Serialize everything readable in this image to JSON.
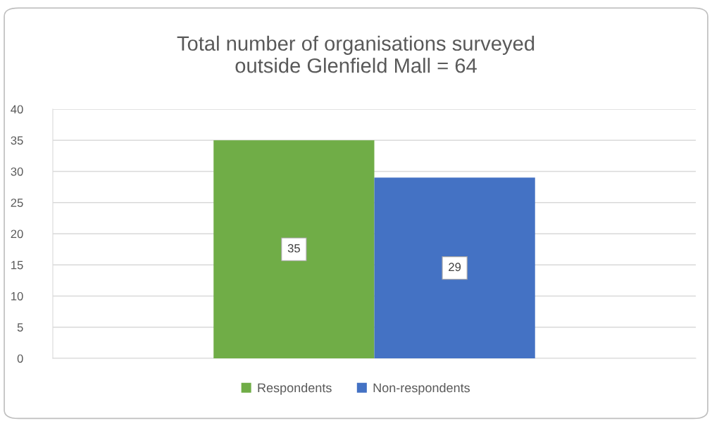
{
  "chart_data": {
    "type": "bar",
    "title": "Total number of organisations surveyed\noutside Glenfield Mall = 64",
    "categories": [
      null
    ],
    "series": [
      {
        "name": "Respondents",
        "color": "#70ad47",
        "values": [
          35
        ]
      },
      {
        "name": "Non-respondents",
        "color": "#4472c4",
        "values": [
          29
        ]
      }
    ],
    "ylim": [
      0,
      40
    ],
    "yticks": [
      0,
      5,
      10,
      15,
      20,
      25,
      30,
      35,
      40
    ],
    "grid": "y",
    "legend": "bottom",
    "data_labels": true
  }
}
